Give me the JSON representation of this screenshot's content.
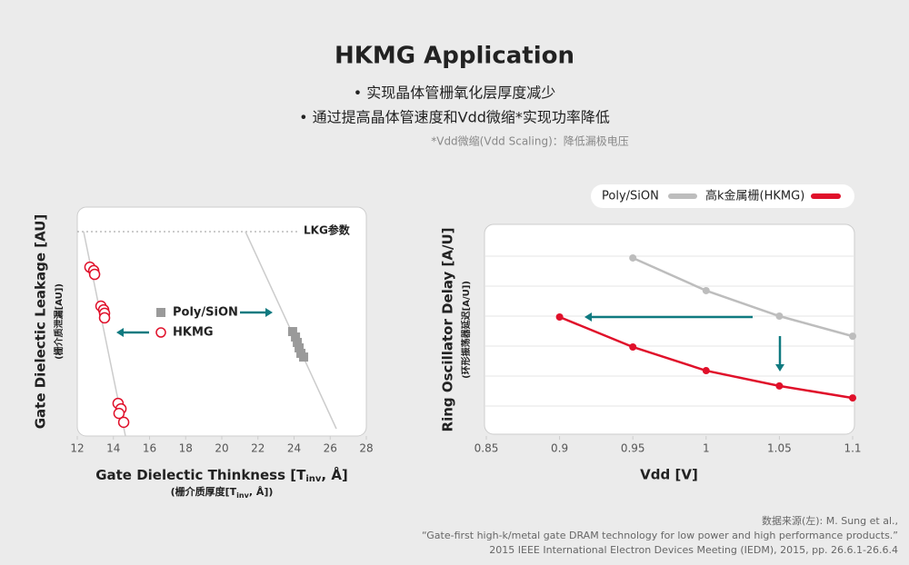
{
  "header": {
    "title": "HKMG Application",
    "bullets": [
      "• 实现晶体管栅氧化层厚度减少",
      "• 通过提高晶体管速度和Vdd微缩*实现功率降低"
    ],
    "note": "*Vdd微缩(Vdd Scaling)：降低漏极电压"
  },
  "chart_data": [
    {
      "type": "scatter",
      "y_label": "Gate Dielectic Leakage [AU]",
      "y_label_sub": "(栅介质泄漏[AU])",
      "x_label": [
        "Gate Dielectic Thinkness [T",
        "inv",
        ", Å]"
      ],
      "x_label_sub": [
        "(栅介质厚度[T",
        "inv",
        ", Å])"
      ],
      "annotation": "LKG参数",
      "xlim": [
        12,
        28
      ],
      "xticks": [
        12,
        14,
        16,
        18,
        20,
        22,
        24,
        26,
        28
      ],
      "ylim": [
        0,
        8
      ],
      "series": [
        {
          "name": "Poly/SiON",
          "color": "#9a9a9a",
          "marker": "square",
          "x": [
            23.92,
            24.08,
            24.18,
            24.28,
            24.38,
            24.53
          ],
          "values": [
            3.65,
            3.46,
            3.27,
            3.08,
            2.89,
            2.76
          ]
        },
        {
          "name": "HKMG",
          "color": "#e0102a",
          "marker": "circle-open",
          "x": [
            12.7,
            12.91,
            12.96,
            13.31,
            13.46,
            13.51,
            13.51,
            14.26,
            14.42,
            14.31,
            14.57
          ],
          "values": [
            5.9,
            5.78,
            5.65,
            4.54,
            4.41,
            4.29,
            4.13,
            1.14,
            0.95,
            0.79,
            0.48
          ]
        }
      ]
    },
    {
      "type": "line",
      "y_label": "Ring Oscillator Delay [A/U]",
      "y_label_sub": "(环形振荡器延迟[A/U])",
      "x_label": "Vdd [V]",
      "x": [
        0.9,
        0.95,
        1,
        1.05,
        1.1
      ],
      "xlim": [
        0.85,
        1.1
      ],
      "xticks": [
        0.85,
        0.9,
        0.95,
        1,
        1.05,
        1.1
      ],
      "ylim": [
        0,
        7
      ],
      "ygrid": [
        1,
        2,
        3,
        4,
        5,
        6
      ],
      "series": [
        {
          "name": "Poly/SiON",
          "color": "#bdbdbd",
          "values": [
            null,
            5.94,
            4.85,
            4.0,
            3.33
          ]
        },
        {
          "name": "高k金属栅(HKMG)",
          "color": "#e0102a",
          "values": [
            3.97,
            2.97,
            2.18,
            1.67,
            1.27
          ]
        }
      ]
    }
  ],
  "source": [
    "数据来源(左): M. Sung et al.,",
    "“Gate-first high-k/metal gate DRAM technology for low power and high performance products.”",
    "2015 IEEE International Electron Devices Meeting (IEDM), 2015, pp. 26.6.1-26.6.4"
  ]
}
